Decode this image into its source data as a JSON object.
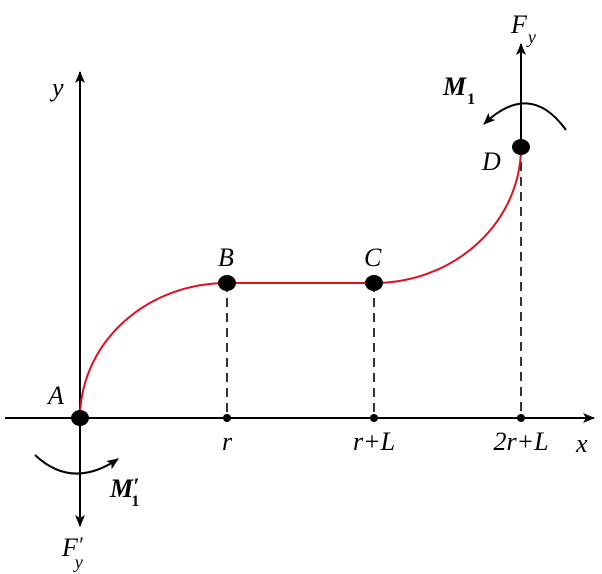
{
  "axes": {
    "x_label": "x",
    "y_label": "y"
  },
  "points": [
    {
      "name": "A"
    },
    {
      "name": "B"
    },
    {
      "name": "C"
    },
    {
      "name": "D"
    }
  ],
  "ticks": [
    "r",
    "r+L",
    "2r+L"
  ],
  "forces": {
    "top_force": {
      "main": "F",
      "sub": "y"
    },
    "top_moment": {
      "main": "M",
      "sub": "1"
    },
    "bottom_force": {
      "main": "F",
      "prime": "′",
      "sub": "y"
    },
    "bottom_moment": {
      "main": "M",
      "prime": "′",
      "sub": "1"
    }
  },
  "colors": {
    "curve": "#e0101e",
    "axes": "#000000"
  }
}
